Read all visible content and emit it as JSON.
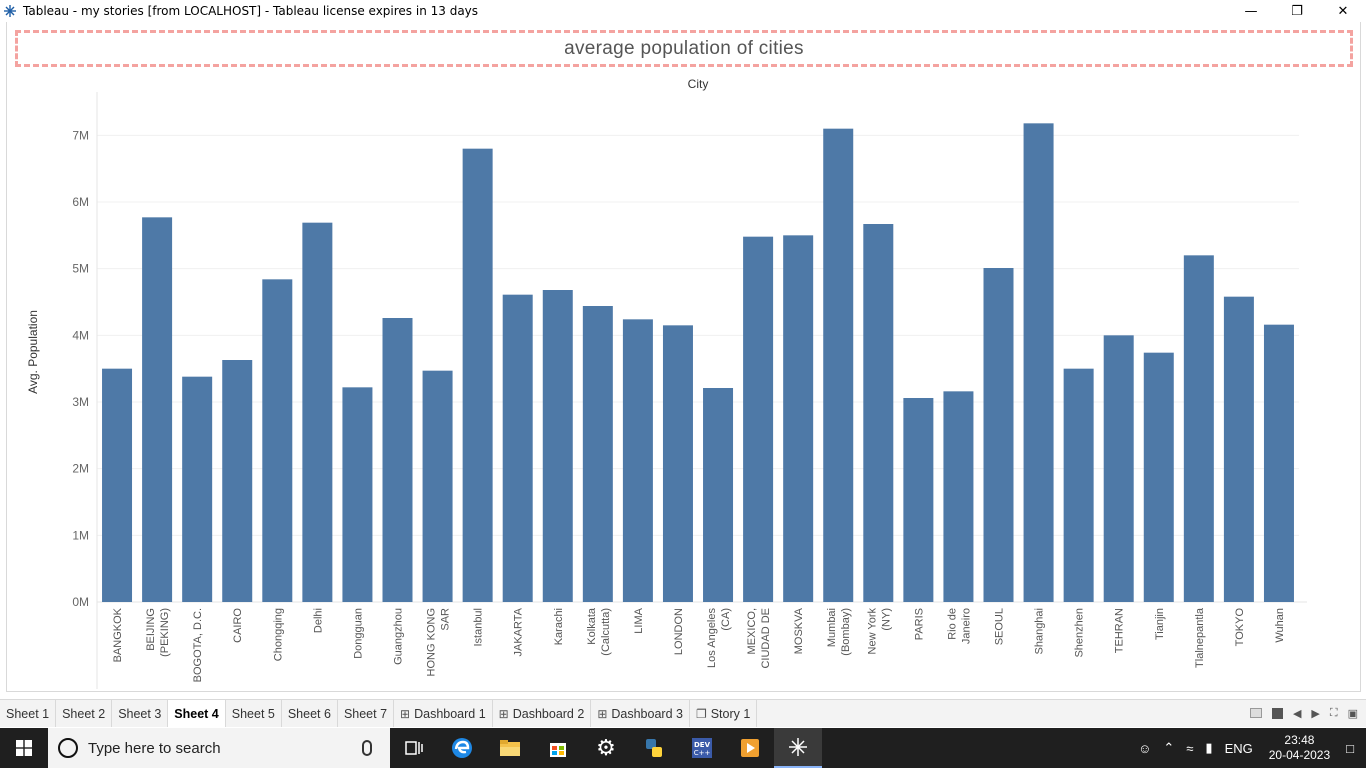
{
  "window": {
    "title": "Tableau - my stories [from LOCALHOST] - Tableau license expires in 13 days"
  },
  "sheet": {
    "title": "average population of cities"
  },
  "chart_data": {
    "type": "bar",
    "top_label": "City",
    "ylabel": "Avg. Population",
    "ylim": [
      0,
      7500000
    ],
    "yticks": [
      0,
      1000000,
      2000000,
      3000000,
      4000000,
      5000000,
      6000000,
      7000000
    ],
    "ytick_labels": [
      "0M",
      "1M",
      "2M",
      "3M",
      "4M",
      "5M",
      "6M",
      "7M"
    ],
    "bar_color": "#4e79a7",
    "categories": [
      [
        "BANGKOK"
      ],
      [
        "BEIJING",
        "(PEKING)"
      ],
      [
        "BOGOTA, D.C."
      ],
      [
        "CAIRO"
      ],
      [
        "Chongqing"
      ],
      [
        "Delhi"
      ],
      [
        "Dongguan"
      ],
      [
        "Guangzhou"
      ],
      [
        "HONG KONG",
        "SAR"
      ],
      [
        "Istanbul"
      ],
      [
        "JAKARTA"
      ],
      [
        "Karachi"
      ],
      [
        "Kolkata",
        "(Calcutta)"
      ],
      [
        "LIMA"
      ],
      [
        "LONDON"
      ],
      [
        "Los Angeles",
        "(CA)"
      ],
      [
        "MEXICO,",
        "CIUDAD DE"
      ],
      [
        "MOSKVA"
      ],
      [
        "Mumbai",
        "(Bombay)"
      ],
      [
        "New York",
        "(NY)"
      ],
      [
        "PARIS"
      ],
      [
        "Rio de",
        "Janeiro"
      ],
      [
        "SEOUL"
      ],
      [
        "Shanghai"
      ],
      [
        "Shenzhen"
      ],
      [
        "TEHRAN"
      ],
      [
        "Tianjin"
      ],
      [
        "Tlalnepantla"
      ],
      [
        "TOKYO"
      ],
      [
        "Wuhan"
      ]
    ],
    "values": [
      3500000,
      5770000,
      3380000,
      3630000,
      4840000,
      5690000,
      3220000,
      4260000,
      3470000,
      6800000,
      4610000,
      4680000,
      4440000,
      4240000,
      4150000,
      3210000,
      5480000,
      5500000,
      7100000,
      5670000,
      3060000,
      3160000,
      5010000,
      7180000,
      3500000,
      4000000,
      3740000,
      5200000,
      4580000,
      4160000
    ]
  },
  "tabs": [
    {
      "label": "Sheet 1",
      "type": "sheet"
    },
    {
      "label": "Sheet 2",
      "type": "sheet"
    },
    {
      "label": "Sheet 3",
      "type": "sheet"
    },
    {
      "label": "Sheet 4",
      "type": "sheet",
      "active": true
    },
    {
      "label": "Sheet 5",
      "type": "sheet"
    },
    {
      "label": "Sheet 6",
      "type": "sheet"
    },
    {
      "label": "Sheet 7",
      "type": "sheet"
    },
    {
      "label": "Dashboard 1",
      "type": "dashboard"
    },
    {
      "label": "Dashboard 2",
      "type": "dashboard"
    },
    {
      "label": "Dashboard 3",
      "type": "dashboard"
    },
    {
      "label": "Story 1",
      "type": "story"
    }
  ],
  "taskbar": {
    "search_placeholder": "Type here to search",
    "language": "ENG",
    "time": "23:48",
    "date": "20-04-2023"
  }
}
